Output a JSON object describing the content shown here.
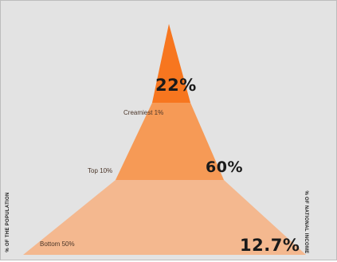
{
  "axis": {
    "left": "% OF THE POPULATION",
    "right": "% OF NATIONAL INCOME"
  },
  "tiers": [
    {
      "label": "Creamiest 1%",
      "value": "22%",
      "color": "#f7761f"
    },
    {
      "label": "Top 10%",
      "value": "60%",
      "color": "#f69a56"
    },
    {
      "label": "Bottom 50%",
      "value": "12.7%",
      "color": "#f4b88f"
    }
  ]
}
